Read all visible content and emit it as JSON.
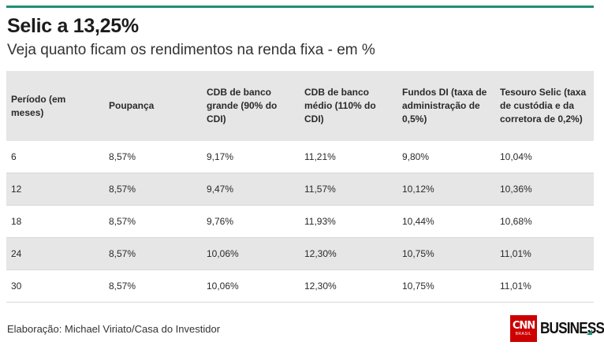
{
  "header": {
    "title": "Selic a 13,25%",
    "subtitle": "Veja quanto ficam os rendimentos na renda fixa - em %"
  },
  "table": {
    "columns": [
      "Período (em meses)",
      "Poupança",
      "CDB de banco grande (90% do CDI)",
      "CDB de banco médio (110% do CDI)",
      "Fundos DI (taxa de administração de 0,5%)",
      "Tesouro Selic (taxa de custódia e da corretora de 0,2%)"
    ],
    "rows": [
      [
        "6",
        "8,57%",
        "9,17%",
        "11,21%",
        "9,80%",
        "10,04%"
      ],
      [
        "12",
        "8,57%",
        "9,47%",
        "11,57%",
        "10,12%",
        "10,36%"
      ],
      [
        "18",
        "8,57%",
        "9,76%",
        "11,93%",
        "10,44%",
        "10,68%"
      ],
      [
        "24",
        "8,57%",
        "10,06%",
        "12,30%",
        "10,75%",
        "11,01%"
      ],
      [
        "30",
        "8,57%",
        "10,06%",
        "12,30%",
        "10,75%",
        "11,01%"
      ]
    ]
  },
  "footer": {
    "source": "Elaboração: Michael Viriato/Casa do Investidor",
    "logo": {
      "cnn": "CNN",
      "brasil": "BRASIL",
      "business": "BUSINESS"
    }
  },
  "colors": {
    "accent": "#1f8f72",
    "stripe": "#e6e6e6",
    "cnn_red": "#cc0000"
  }
}
